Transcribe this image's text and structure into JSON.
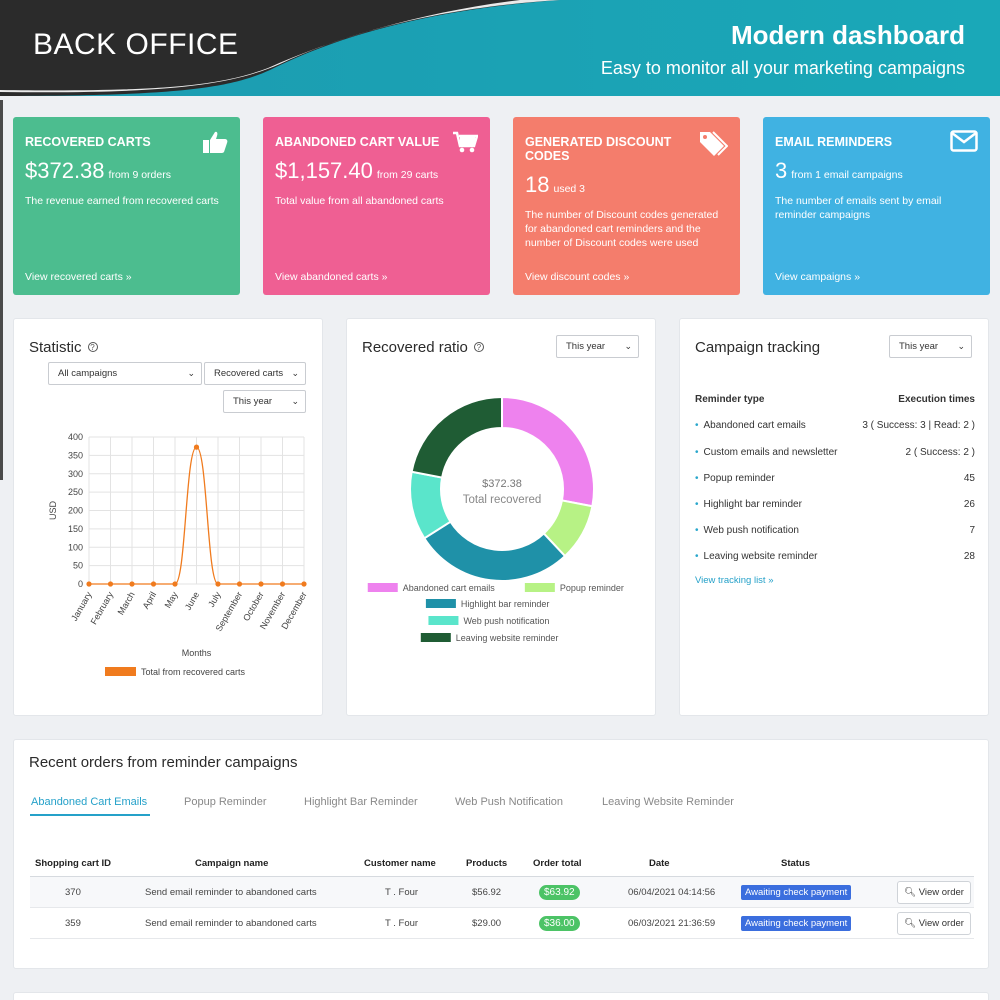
{
  "banner": {
    "left_label": "BACK OFFICE",
    "title": "Modern dashboard",
    "subtitle": "Easy to monitor all your marketing campaigns"
  },
  "kpis": [
    {
      "title": "RECOVERED CARTS",
      "value": "$372.38",
      "sub": "from 9 orders",
      "desc": "The revenue earned from recovered carts",
      "link": "View recovered carts",
      "icon": "thumbs-up-icon",
      "color": "#4cbd8f"
    },
    {
      "title": "ABANDONED CART VALUE",
      "value": "$1,157.40",
      "sub": "from 29 carts",
      "desc": "Total value from all abandoned carts",
      "link": "View abandoned carts",
      "icon": "shopping-cart-icon",
      "color": "#ef5f93"
    },
    {
      "title": "GENERATED DISCOUNT CODES",
      "value": "18",
      "sub": "used 3",
      "desc": "The number of Discount codes generated for abandoned cart reminders and the number of Discount codes were used",
      "link": "View discount codes",
      "icon": "tags-icon",
      "color": "#f47d6c"
    },
    {
      "title": "EMAIL REMINDERS",
      "value": "3",
      "sub": "from 1 email campaigns",
      "desc": "The number of emails sent by email reminder campaigns",
      "link": "View campaigns",
      "icon": "envelope-icon",
      "color": "#40b2e2"
    }
  ],
  "link_chevron": "»",
  "help_glyph": "?",
  "caret_glyph": "⌄",
  "statistic": {
    "title": "Statistic",
    "campaign_select": "All campaigns",
    "metric_select": "Recovered carts",
    "period_select": "This year",
    "legend": "Total from recovered carts",
    "series_color": "#f07b1e"
  },
  "ratio": {
    "title": "Recovered ratio",
    "period_select": "This year",
    "center_value": "$372.38",
    "center_label": "Total recovered"
  },
  "chart_data": [
    {
      "type": "line",
      "title": "Statistic",
      "xlabel": "Months",
      "ylabel": "USD",
      "categories": [
        "January",
        "February",
        "March",
        "April",
        "May",
        "June",
        "July",
        "September",
        "October",
        "November",
        "December"
      ],
      "series": [
        {
          "name": "Total from recovered carts",
          "values": [
            0,
            0,
            0,
            0,
            0,
            372.38,
            0,
            0,
            0,
            0,
            0
          ]
        }
      ],
      "ylim": [
        0,
        400
      ],
      "yticks": [
        0,
        50,
        100,
        150,
        200,
        250,
        300,
        350,
        400
      ],
      "grid": true
    },
    {
      "type": "pie",
      "title": "Recovered ratio",
      "categories": [
        "Abandoned cart emails",
        "Popup reminder",
        "Highlight bar reminder",
        "Web push notification",
        "Leaving website reminder"
      ],
      "values": [
        28,
        10,
        28,
        12,
        22
      ],
      "colors": [
        "#ee82ee",
        "#b7f285",
        "#1f91a8",
        "#5ae5cb",
        "#1f5c34"
      ]
    }
  ],
  "tracking": {
    "title": "Campaign tracking",
    "period_select": "This year",
    "col_type": "Reminder type",
    "col_exec": "Execution times",
    "rows": [
      {
        "name": "Abandoned cart emails",
        "value": "3 ( Success: 3 | Read: 2 )"
      },
      {
        "name": "Custom emails and newsletter",
        "value": "2 ( Success: 2 )"
      },
      {
        "name": "Popup reminder",
        "value": "45"
      },
      {
        "name": "Highlight bar reminder",
        "value": "26"
      },
      {
        "name": "Web push notification",
        "value": "7"
      },
      {
        "name": "Leaving website reminder",
        "value": "28"
      }
    ],
    "bullet": "•",
    "link": "View tracking list"
  },
  "orders": {
    "title": "Recent orders from reminder campaigns",
    "tabs": [
      "Abandoned Cart Emails",
      "Popup Reminder",
      "Highlight Bar Reminder",
      "Web Push Notification",
      "Leaving Website Reminder"
    ],
    "headers": [
      "Shopping cart ID",
      "Campaign name",
      "Customer name",
      "Products",
      "Order total",
      "Date",
      "Status"
    ],
    "rows": [
      {
        "id": "370",
        "campaign": "Send email reminder to abandoned carts",
        "customer": "T . Four",
        "products": "$56.92",
        "total": "$63.92",
        "date": "06/04/2021 04:14:56",
        "status": "Awaiting check payment",
        "action": "View order"
      },
      {
        "id": "359",
        "campaign": "Send email reminder to abandoned carts",
        "customer": "T . Four",
        "products": "$29.00",
        "total": "$36.00",
        "date": "06/03/2021 21:36:59",
        "status": "Awaiting check payment",
        "action": "View order"
      }
    ]
  }
}
